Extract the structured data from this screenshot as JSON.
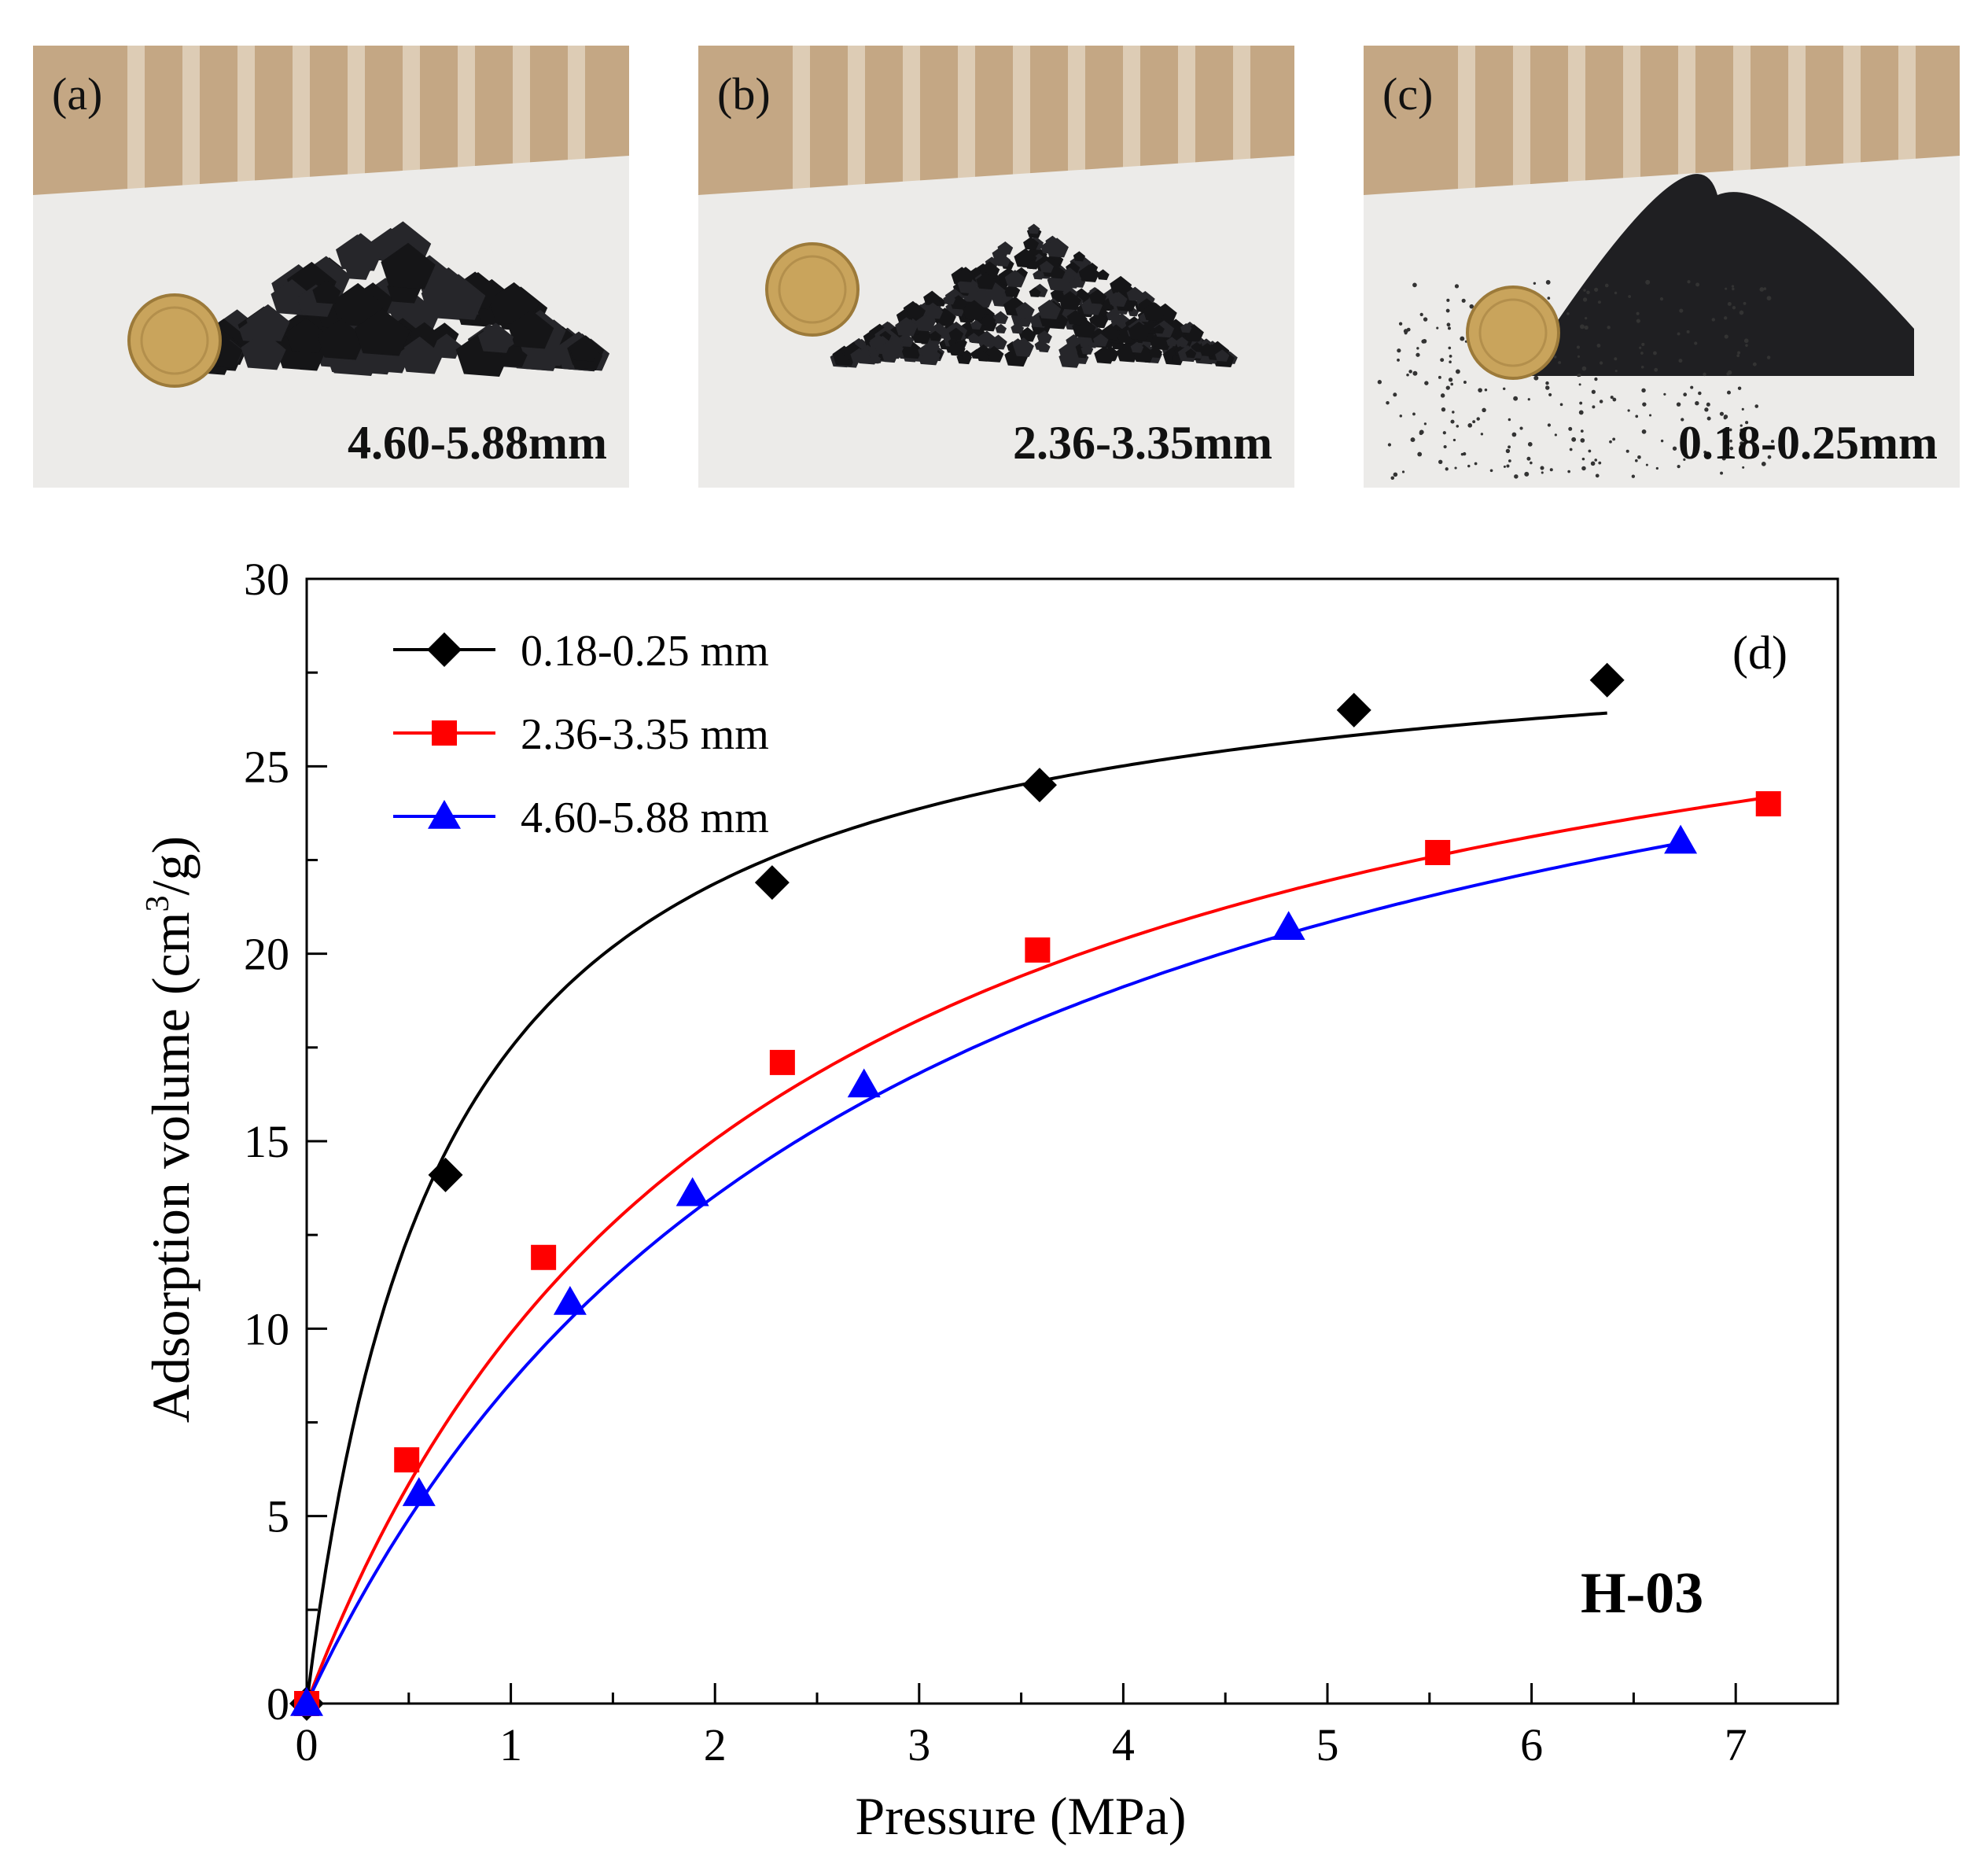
{
  "photos": [
    {
      "letter": "(a)",
      "caption": "4.60-5.88mm",
      "size": "coarse"
    },
    {
      "letter": "(b)",
      "caption": "2.36-3.35mm",
      "size": "medium"
    },
    {
      "letter": "(c)",
      "caption": "0.18-0.25mm",
      "size": "fine"
    }
  ],
  "chart_data": {
    "type": "scatter",
    "panel_label": "(d)",
    "sample_label": "H-03",
    "xlabel": "Pressure (MPa)",
    "ylabel_main": "Adsorption volume  (cm",
    "ylabel_sup": "3",
    "ylabel_end": "/g)",
    "xlim": [
      0,
      7.5
    ],
    "ylim": [
      0,
      30
    ],
    "xticks": [
      0,
      1,
      2,
      3,
      4,
      5,
      6,
      7
    ],
    "yticks": [
      0,
      5,
      10,
      15,
      20,
      25,
      30
    ],
    "legend_position": "top-left",
    "grid": false,
    "fit": "langmuir",
    "series": [
      {
        "name": "0.18-0.25 mm",
        "color": "#000000",
        "marker": "diamond",
        "x": [
          0,
          0.68,
          2.28,
          3.59,
          5.13,
          6.37
        ],
        "y": [
          0,
          14.1,
          21.9,
          24.5,
          26.5,
          27.3
        ],
        "fit_VL": 29.2,
        "fit_PL": 0.67,
        "fit_xmax": 6.37
      },
      {
        "name": "2.36-3.35 mm",
        "color": "#ff0000",
        "marker": "square",
        "x": [
          0,
          0.49,
          1.16,
          2.33,
          3.58,
          5.54,
          7.16
        ],
        "y": [
          0,
          6.5,
          11.9,
          17.1,
          20.1,
          22.7,
          24.0
        ],
        "fit_VL": 31.6,
        "fit_PL": 2.2,
        "fit_xmax": 7.16
      },
      {
        "name": "4.60-5.88 mm",
        "color": "#0000ff",
        "marker": "triangle",
        "x": [
          0,
          0.55,
          1.29,
          1.89,
          2.73,
          4.81,
          6.73
        ],
        "y": [
          0,
          5.6,
          10.7,
          13.6,
          16.5,
          20.7,
          23.0
        ],
        "fit_VL": 32.5,
        "fit_PL": 2.8,
        "fit_xmax": 6.73
      }
    ]
  }
}
